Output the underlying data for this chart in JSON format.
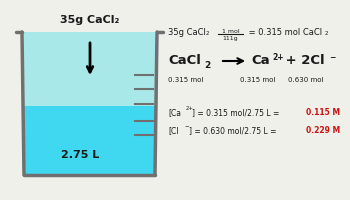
{
  "background_color": "#f0f0eb",
  "beaker": {
    "body_color": "#a8e8e8",
    "water_color": "#40d8f0",
    "outline_color": "#707070",
    "graduation_color": "#707070",
    "water_level": 0.48
  },
  "label_above": "35g CaCl₂",
  "label_volume": "2.75 L",
  "dark_color": "#1a1a1a",
  "red_color": "#cc1111",
  "frac_num": "1 mol",
  "frac_den": "111g",
  "eq_arrow": "→",
  "mol_row": [
    "0.315 mol",
    "0.315 mol",
    "0.630 mol"
  ],
  "conc_ca_val": "0.115 M",
  "conc_cl_val": "0.229 M"
}
